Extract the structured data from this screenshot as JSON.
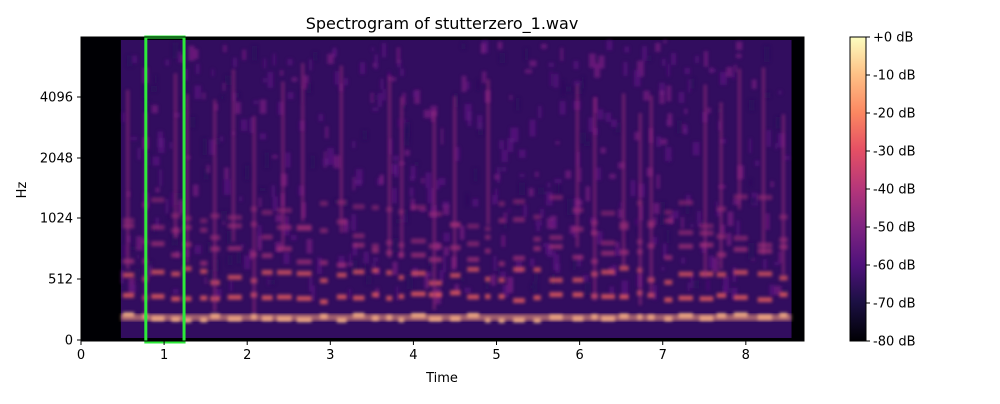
{
  "chart_data": {
    "type": "heatmap",
    "title": "Spectrogram of stutterzero_1.wav",
    "xlabel": "Time",
    "ylabel": "Hz",
    "xlim": [
      0,
      8.7
    ],
    "x_ticks": [
      0,
      1,
      2,
      3,
      4,
      5,
      6,
      7,
      8
    ],
    "x_tick_labels": [
      "0",
      "1",
      "2",
      "3",
      "4",
      "5",
      "6",
      "7",
      "8"
    ],
    "y_scale": "log2",
    "y_ticks": [
      0,
      512,
      1024,
      2048,
      4096
    ],
    "y_tick_labels": [
      "0",
      "512",
      "1024",
      "2048",
      "4096"
    ],
    "colormap": "magma",
    "colorbar": {
      "range_db": [
        -80,
        0
      ],
      "ticks": [
        0,
        -10,
        -20,
        -30,
        -40,
        -50,
        -60,
        -70,
        -80
      ],
      "tick_labels": [
        "+0 dB",
        "-10 dB",
        "-20 dB",
        "-30 dB",
        "-40 dB",
        "-50 dB",
        "-60 dB",
        "-70 dB",
        "-80 dB"
      ]
    },
    "highlight": {
      "x_range": [
        0.78,
        1.24
      ],
      "color": "#2dea3a"
    }
  }
}
